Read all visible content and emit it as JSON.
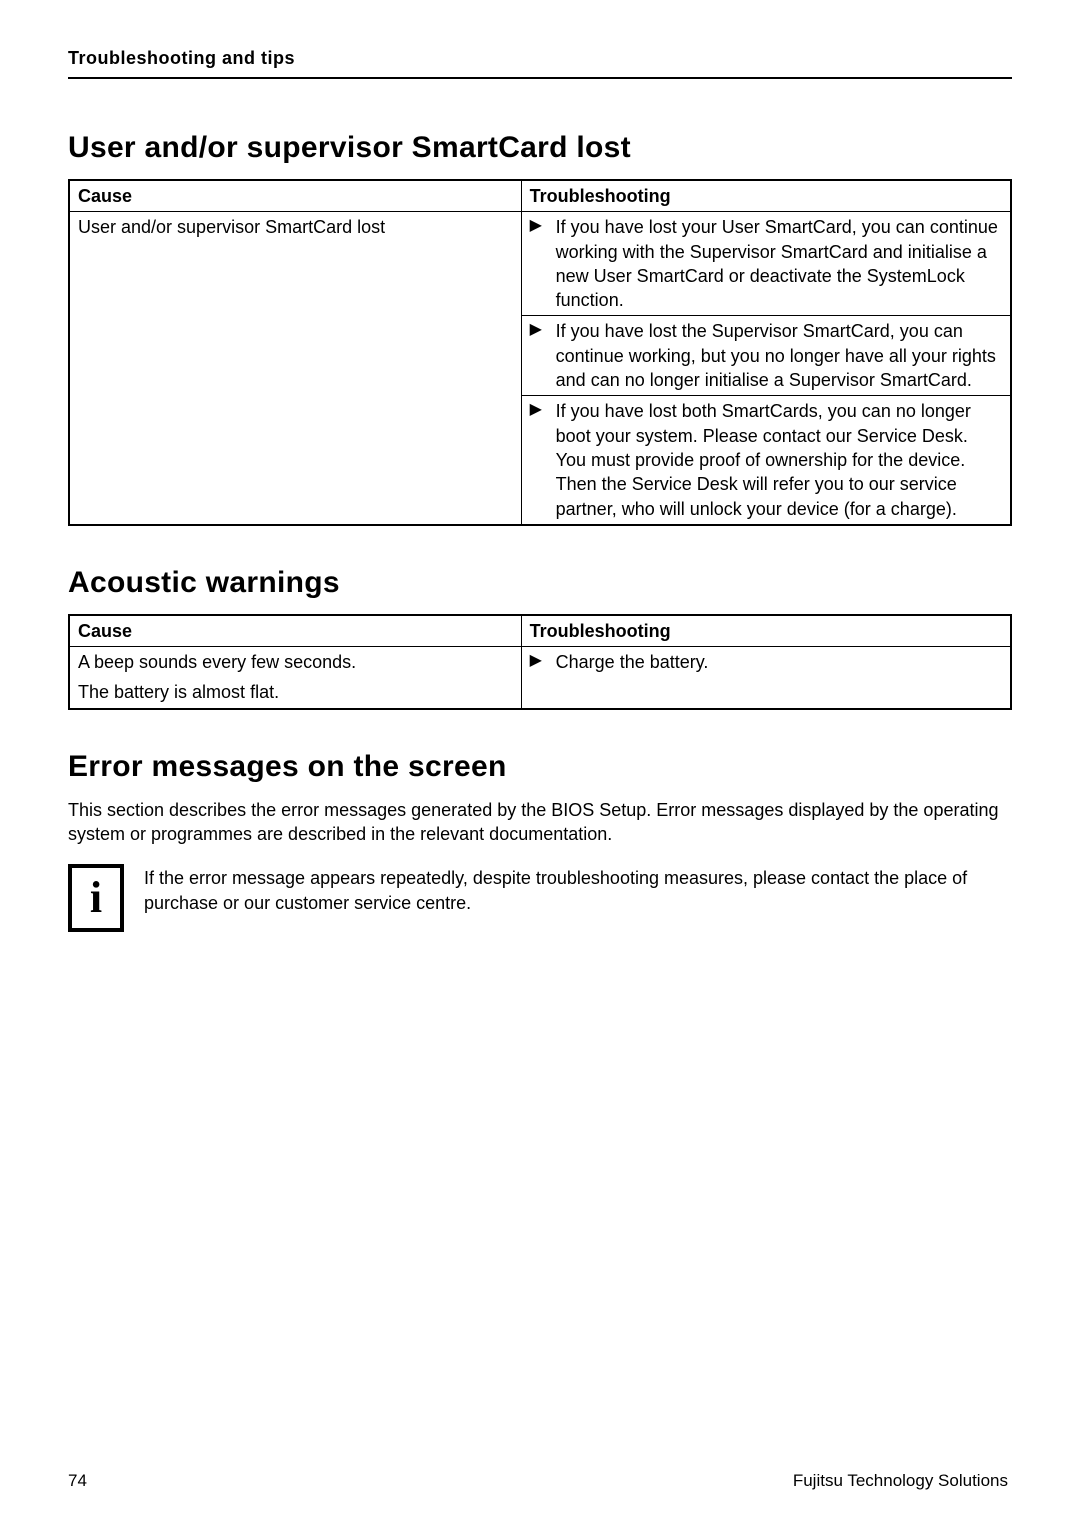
{
  "header": {
    "title": "Troubleshooting and tips"
  },
  "section1": {
    "heading": "User and/or supervisor SmartCard lost",
    "columns": {
      "cause": "Cause",
      "troubleshoot": "Troubleshooting"
    },
    "cause_text": "User and/or supervisor SmartCard lost",
    "bullets": {
      "b1": "If you have lost your User SmartCard, you can continue working with the Supervisor SmartCard and initialise a new User SmartCard or deactivate the SystemLock function.",
      "b2": "If you have lost the Supervisor SmartCard, you can continue working, but you no longer have all your rights and can no longer initialise a Supervisor SmartCard.",
      "b3": "If you have lost both SmartCards, you can no longer boot your system. Please contact our Service Desk. You must provide proof of ownership for the device. Then the Service Desk will refer you to our service partner, who will unlock your device (for a charge)."
    }
  },
  "section2": {
    "heading": "Acoustic warnings",
    "columns": {
      "cause": "Cause",
      "troubleshoot": "Troubleshooting"
    },
    "cause_line1": "A beep sounds every few seconds.",
    "cause_line2": "The battery is almost flat.",
    "bullet": "Charge the battery."
  },
  "section3": {
    "heading": "Error messages on the screen",
    "body": "This section describes the error messages generated by the BIOS Setup. Error messages displayed by the operating system or programmes are described in the relevant documentation.",
    "info_text": "If the error message appears repeatedly, despite troubleshooting measures, please contact the place of purchase or our customer service centre.",
    "info_glyph": "i"
  },
  "footer": {
    "page": "74",
    "company": "Fujitsu Technology Solutions"
  },
  "bullet_marker": "▶"
}
